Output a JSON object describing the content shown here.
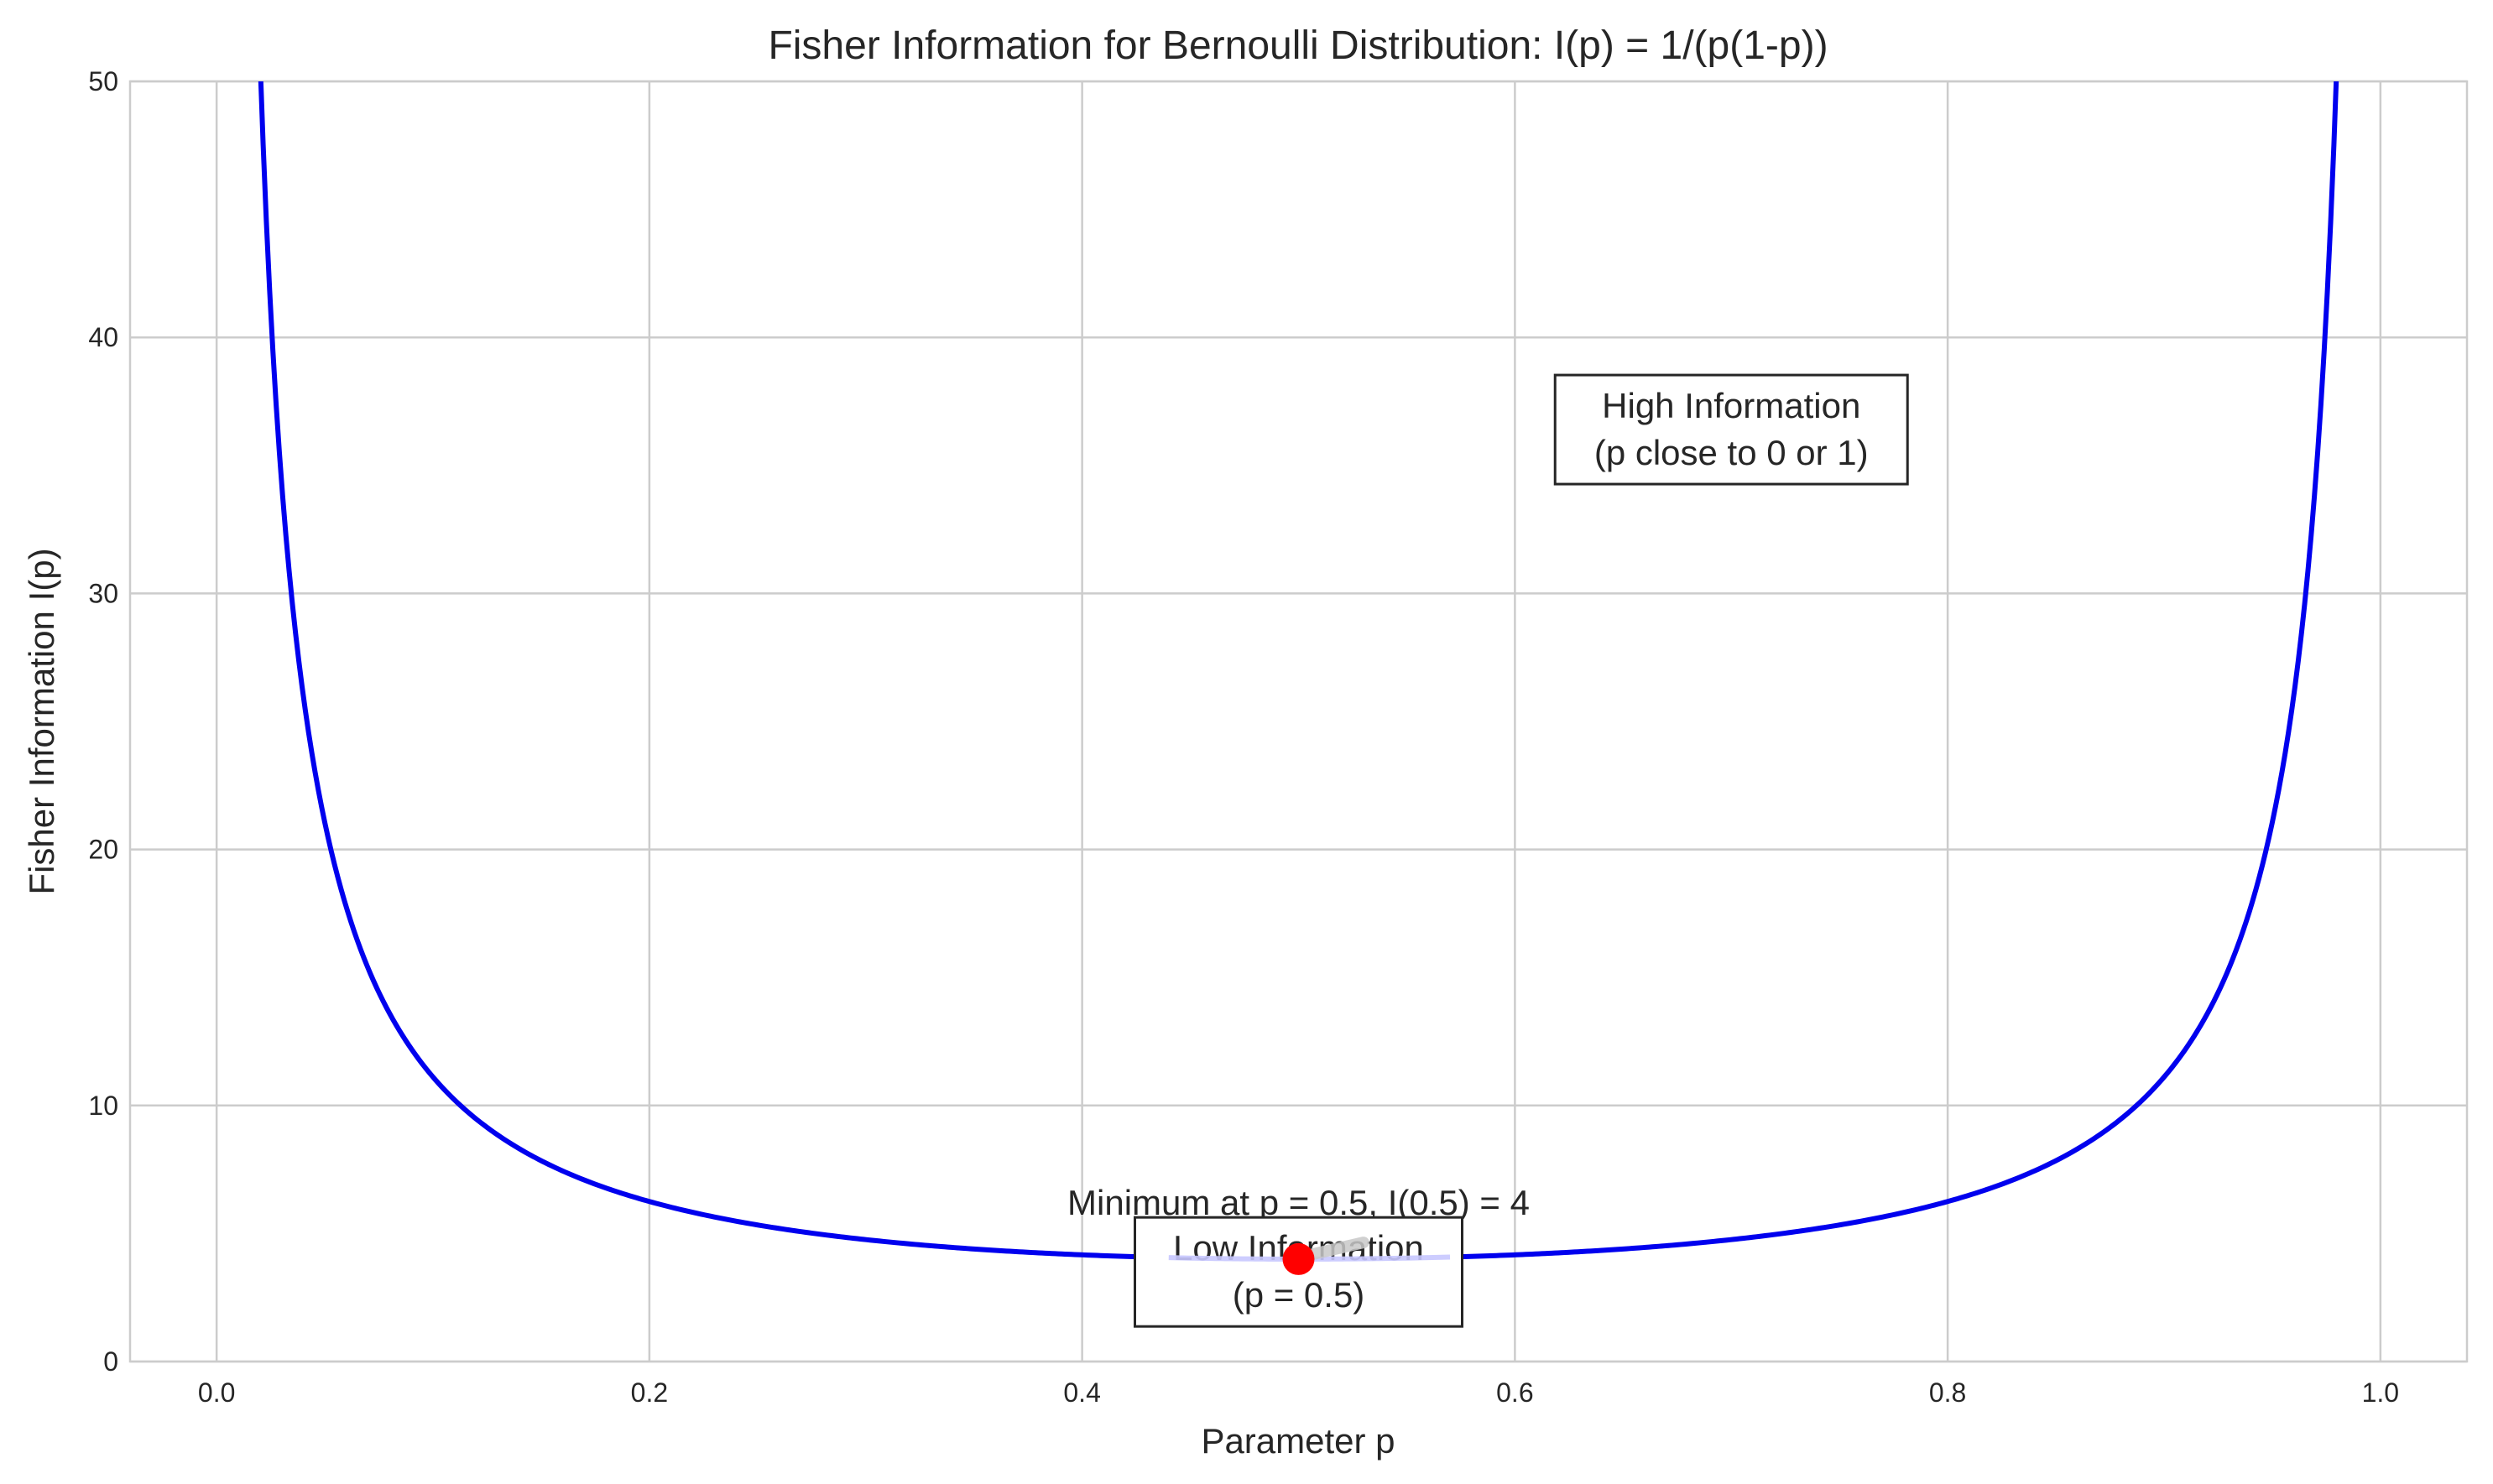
{
  "chart_data": {
    "type": "line",
    "title": "Fisher Information for Bernoulli Distribution: I(p) = 1/(p(1-p))",
    "xlabel": "Parameter p",
    "ylabel": "Fisher Information I(p)",
    "xlim": [
      -0.04,
      1.04
    ],
    "ylim": [
      0,
      50
    ],
    "xticks": [
      0.0,
      0.2,
      0.4,
      0.6,
      0.8,
      1.0
    ],
    "xtick_labels": [
      "0.0",
      "0.2",
      "0.4",
      "0.6",
      "0.8",
      "1.0"
    ],
    "yticks": [
      0,
      10,
      20,
      30,
      40,
      50
    ],
    "ytick_labels": [
      "0",
      "10",
      "20",
      "30",
      "40",
      "50"
    ],
    "grid": true,
    "series": [
      {
        "color": "#0000ee",
        "x": [
          0.02,
          0.025,
          0.03,
          0.035,
          0.04,
          0.05,
          0.06,
          0.07,
          0.08,
          0.1,
          0.12,
          0.15,
          0.2,
          0.25,
          0.3,
          0.35,
          0.4,
          0.45,
          0.5,
          0.55,
          0.6,
          0.65,
          0.7,
          0.75,
          0.8,
          0.85,
          0.88,
          0.9,
          0.92,
          0.93,
          0.94,
          0.95,
          0.96,
          0.965,
          0.97,
          0.975,
          0.98
        ],
        "y": [
          51.02,
          41.03,
          34.36,
          29.61,
          26.04,
          21.05,
          17.73,
          15.36,
          13.59,
          11.11,
          9.47,
          7.84,
          6.25,
          5.33,
          4.76,
          4.4,
          4.17,
          4.04,
          4.0,
          4.04,
          4.17,
          4.4,
          4.76,
          5.33,
          6.25,
          7.84,
          9.47,
          11.11,
          13.59,
          15.36,
          17.73,
          21.05,
          26.04,
          29.61,
          34.36,
          41.03,
          51.02
        ]
      }
    ],
    "highlight_segment": {
      "x": [
        0.44,
        0.57
      ],
      "color": "#c8c8ff"
    },
    "minimum_point": {
      "x": 0.5,
      "y": 4.0,
      "color": "#ff0000"
    },
    "annotations": [
      {
        "text": "Minimum at p = 0.5, I(0.5) = 4",
        "x": 0.5,
        "y": 6.2
      }
    ],
    "boxes": [
      {
        "lines": [
          "High Information",
          "(p close to 0 or 1)"
        ],
        "x": 0.7,
        "y": 36.4
      },
      {
        "lines": [
          "Low Information",
          "(p = 0.5)"
        ],
        "x": 0.5,
        "y": 3.5
      }
    ]
  }
}
